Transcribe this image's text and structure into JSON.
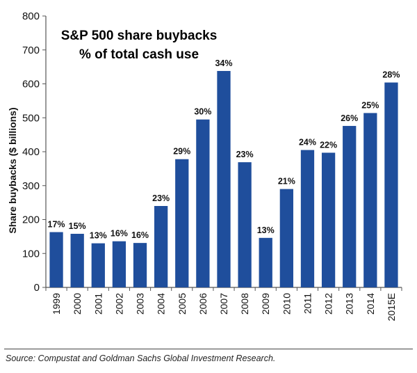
{
  "chart_data": {
    "type": "bar",
    "title": "S&P 500 share buybacks",
    "subtitle": "% of total cash use",
    "ylabel": "Share buybacks ($ billions)",
    "xlabel": "",
    "ylim": [
      0,
      800
    ],
    "yticks": [
      0,
      100,
      200,
      300,
      400,
      500,
      600,
      700,
      800
    ],
    "grid": false,
    "legend": "none",
    "bar_color": "#1F4E9C",
    "categories": [
      "1999",
      "2000",
      "2001",
      "2002",
      "2003",
      "2004",
      "2005",
      "2006",
      "2007",
      "2008",
      "2009",
      "2010",
      "2011",
      "2012",
      "2013",
      "2014",
      "2015E"
    ],
    "values": [
      163,
      158,
      130,
      136,
      131,
      240,
      378,
      495,
      638,
      369,
      146,
      290,
      405,
      397,
      476,
      514,
      604
    ],
    "data_labels": [
      "17%",
      "15%",
      "13%",
      "16%",
      "16%",
      "23%",
      "29%",
      "30%",
      "34%",
      "23%",
      "13%",
      "21%",
      "24%",
      "22%",
      "26%",
      "25%",
      "28%"
    ]
  },
  "source": "Source: Compustat and Goldman Sachs Global Investment Research."
}
